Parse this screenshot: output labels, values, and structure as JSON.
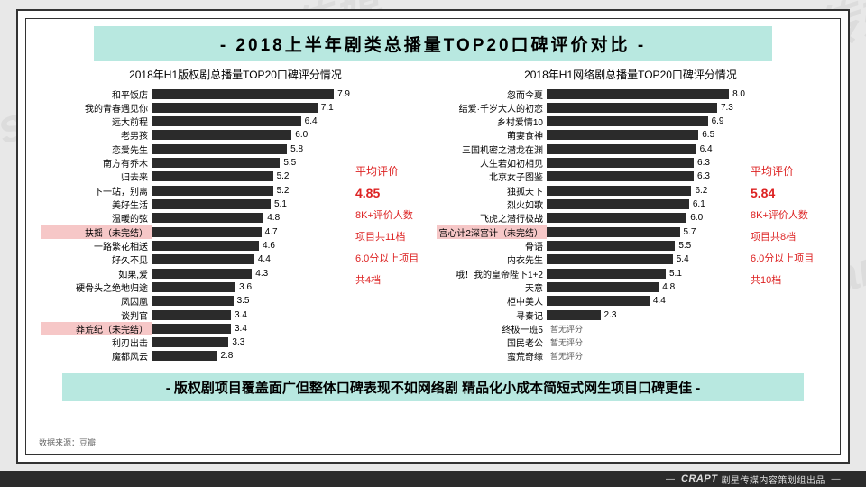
{
  "title": "- 2018上半年剧类总播量TOP20口碑评价对比 -",
  "bottom_text": "- 版权剧项目覆盖面广但整体口碑表现不如网络剧 精品化小成本简短式网生项目口碑更佳 -",
  "source": "数据来源：豆瓣",
  "footer_brand": "CRAPT",
  "footer_text": "剧星传媒内容策划组出品",
  "watermark": "Vision Star 剧星传媒",
  "bar_color": "#2b2b2b",
  "highlight_bg": "#f6c7c7",
  "band_bg": "#b8e8e0",
  "stat_color": "#d22222",
  "x_max": 8.5,
  "left": {
    "title": "2018年H1版权剧总播量TOP20口碑评分情况",
    "stats": {
      "avg_label": "平均评价",
      "avg_value": "4.85",
      "l1": "8K+评价人数",
      "l2": "项目共11档",
      "l3": "6.0分以上项目",
      "l4": "共4档"
    },
    "rows": [
      {
        "label": "和平饭店",
        "v": 7.9
      },
      {
        "label": "我的青春遇见你",
        "v": 7.1
      },
      {
        "label": "远大前程",
        "v": 6.4
      },
      {
        "label": "老男孩",
        "v": 6.0
      },
      {
        "label": "恋爱先生",
        "v": 5.8
      },
      {
        "label": "南方有乔木",
        "v": 5.5
      },
      {
        "label": "归去来",
        "v": 5.2
      },
      {
        "label": "下一站，别离",
        "v": 5.2
      },
      {
        "label": "美好生活",
        "v": 5.1
      },
      {
        "label": "温暖的弦",
        "v": 4.8
      },
      {
        "label": "扶摇（未完结）",
        "v": 4.7,
        "hl": true
      },
      {
        "label": "一路繁花相送",
        "v": 4.6
      },
      {
        "label": "好久不见",
        "v": 4.4
      },
      {
        "label": "如果,爱",
        "v": 4.3
      },
      {
        "label": "硬骨头之绝地归途",
        "v": 3.6
      },
      {
        "label": "凤囚凰",
        "v": 3.5
      },
      {
        "label": "谈判官",
        "v": 3.4
      },
      {
        "label": "莽荒纪（未完结）",
        "v": 3.4,
        "hl": true
      },
      {
        "label": "利刃出击",
        "v": 3.3
      },
      {
        "label": "魔都风云",
        "v": 2.8
      }
    ]
  },
  "right": {
    "title": "2018年H1网络剧总播量TOP20口碑评分情况",
    "stats": {
      "avg_label": "平均评价",
      "avg_value": "5.84",
      "l1": "8K+评价人数",
      "l2": "项目共8档",
      "l3": "6.0分以上项目",
      "l4": "共10档"
    },
    "rows": [
      {
        "label": "忽而今夏",
        "v": 8.0
      },
      {
        "label": "结爱·千岁大人的初恋",
        "v": 7.3
      },
      {
        "label": "乡村爱情10",
        "v": 6.9
      },
      {
        "label": "萌妻食神",
        "v": 6.5
      },
      {
        "label": "三国机密之潜龙在渊",
        "v": 6.4
      },
      {
        "label": "人生若如初相见",
        "v": 6.3
      },
      {
        "label": "北京女子图鉴",
        "v": 6.3
      },
      {
        "label": "独孤天下",
        "v": 6.2
      },
      {
        "label": "烈火如歌",
        "v": 6.1
      },
      {
        "label": "飞虎之潜行极战",
        "v": 6.0
      },
      {
        "label": "宫心计2深宫计（未完结）",
        "v": 5.7,
        "hl": true
      },
      {
        "label": "骨语",
        "v": 5.5
      },
      {
        "label": "内衣先生",
        "v": 5.4
      },
      {
        "label": "哦！我的皇帝陛下1+2",
        "v": 5.1
      },
      {
        "label": "天意",
        "v": 4.8
      },
      {
        "label": "柜中美人",
        "v": 4.4
      },
      {
        "label": "寻秦记",
        "v": 2.3
      },
      {
        "label": "终极一班5",
        "v": 0,
        "na": "暂无评分"
      },
      {
        "label": "国民老公",
        "v": 0,
        "na": "暂无评分"
      },
      {
        "label": "蛮荒奇缘",
        "v": 0,
        "na": "暂无评分"
      }
    ]
  }
}
